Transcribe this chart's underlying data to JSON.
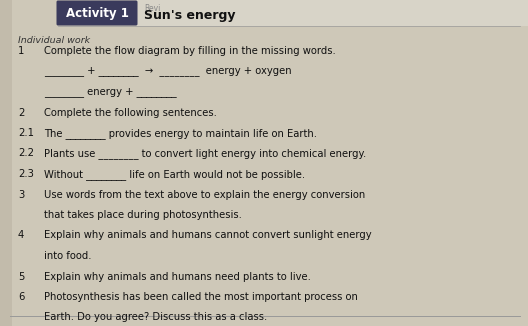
{
  "bg_color": "#cec8b8",
  "header_box_color": "#3a3a5c",
  "header_text_color": "#ffffff",
  "activity_label": "Activity 1",
  "activity_title": "Sun's energy",
  "italic_label": "Individual work",
  "lines": [
    {
      "num": "1",
      "indent": 0,
      "text": "Complete the flow diagram by filling in the missing words."
    },
    {
      "num": "",
      "indent": 1,
      "text": "________ + ________  →  ________  energy + oxygen"
    },
    {
      "num": "",
      "indent": 1,
      "text": "________ energy + ________"
    },
    {
      "num": "2",
      "indent": 0,
      "text": "Complete the following sentences."
    },
    {
      "num": "2.1",
      "indent": 1,
      "text": "The ________ provides energy to maintain life on Earth."
    },
    {
      "num": "2.2",
      "indent": 1,
      "text": "Plants use ________ to convert light energy into chemical energy."
    },
    {
      "num": "2.3",
      "indent": 1,
      "text": "Without ________ life on Earth would not be possible."
    },
    {
      "num": "3",
      "indent": 0,
      "text": "Use words from the text above to explain the energy conversion"
    },
    {
      "num": "",
      "indent": 1,
      "text": "that takes place during photosynthesis."
    },
    {
      "num": "4",
      "indent": 0,
      "text": "Explain why animals and humans cannot convert sunlight energy"
    },
    {
      "num": "",
      "indent": 1,
      "text": "into food."
    },
    {
      "num": "5",
      "indent": 0,
      "text": "Explain why animals and humans need plants to live."
    },
    {
      "num": "6",
      "indent": 0,
      "text": "Photosynthesis has been called the most important process on"
    },
    {
      "num": "",
      "indent": 1,
      "text": "Earth. Do you agree? Discuss this as a class."
    }
  ],
  "font_size_body": 7.2,
  "font_size_header": 8.5,
  "font_size_italic": 6.8,
  "font_size_num": 7.2
}
